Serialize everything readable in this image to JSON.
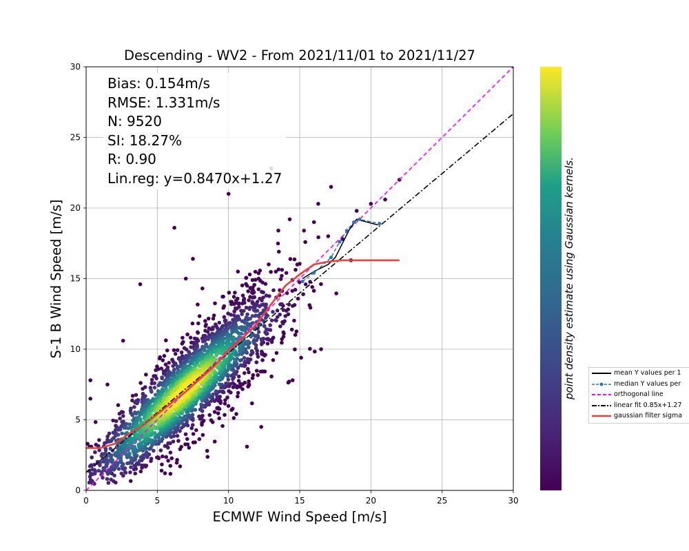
{
  "chart_data": {
    "type": "scatter",
    "title": "Descending - WV2 - From 2021/11/01 to 2021/11/27",
    "xlabel": "ECMWF Wind Speed [m/s]",
    "ylabel": "S-1 B Wind Speed [m/s]",
    "xlim": [
      0,
      30
    ],
    "ylim": [
      0,
      30
    ],
    "xticks": [
      "0",
      "5",
      "10",
      "15",
      "20",
      "25",
      "30"
    ],
    "yticks": [
      "0",
      "5",
      "10",
      "15",
      "20",
      "25",
      "30"
    ],
    "grid": true,
    "legend_position": "outside right",
    "colormap": "viridis",
    "colorbar_label": "point density estimate using Gaussian kernels.",
    "stats": [
      "Bias: 0.154m/s",
      "RMSE: 1.331m/s",
      "N: 9520",
      "SI: 18.27%",
      "R: 0.90",
      "Lin.reg: y=0.8470x+1.27"
    ],
    "series": [
      {
        "name": "mean Y values per 1",
        "color": "#000000",
        "style": "solid",
        "x": [
          15.2,
          16.0,
          17.0,
          17.5,
          18.0,
          18.5,
          19.0,
          20.5
        ],
        "y": [
          15.0,
          15.5,
          16.0,
          16.5,
          17.5,
          18.5,
          19.2,
          18.8
        ]
      },
      {
        "name": "median Y values per",
        "color": "#1f77b4",
        "style": "dashed-markers",
        "x": [
          15.2,
          16.0,
          17.2,
          17.8,
          18.3,
          18.8,
          19.2,
          20.6
        ],
        "y": [
          14.8,
          15.4,
          16.5,
          17.6,
          18.4,
          19.0,
          19.2,
          18.9
        ]
      },
      {
        "name": "orthogonal line",
        "color": "#ff00ff",
        "style": "dashed",
        "x": [
          0,
          30
        ],
        "y": [
          0,
          30
        ]
      },
      {
        "name": "linear fit 0.85x+1.27",
        "color": "#000000",
        "style": "dashdot",
        "x": [
          0,
          30
        ],
        "y": [
          1.27,
          26.68
        ]
      },
      {
        "name": "gaussian filter sigma",
        "color": "#e8403a",
        "style": "solid",
        "x": [
          0,
          1,
          2,
          3,
          4,
          5,
          6,
          7,
          8,
          9,
          10,
          11,
          12,
          13,
          14,
          15,
          16,
          17,
          18,
          19,
          20,
          21,
          22
        ],
        "y": [
          3.0,
          3.0,
          3.3,
          4.0,
          4.6,
          5.4,
          6.2,
          7.0,
          7.9,
          8.8,
          9.9,
          10.8,
          11.8,
          13.2,
          14.5,
          15.3,
          16.0,
          16.2,
          16.3,
          16.3,
          16.3,
          16.3,
          16.3
        ]
      }
    ],
    "scatter_outliers": [
      [
        10.0,
        21.0
      ],
      [
        13.0,
        22.8
      ],
      [
        6.2,
        18.6
      ],
      [
        7.0,
        15.0
      ],
      [
        3.8,
        14.6
      ],
      [
        7.5,
        16.4
      ],
      [
        0.3,
        7.8
      ],
      [
        0.3,
        6.5
      ],
      [
        1.5,
        7.5
      ],
      [
        12.3,
        4.5
      ],
      [
        11.3,
        3.1
      ],
      [
        14.5,
        7.8
      ],
      [
        22.0,
        22.0
      ],
      [
        21.0,
        20.6
      ],
      [
        20.0,
        20.3
      ],
      [
        17.2,
        21.5
      ],
      [
        19.0,
        19.8
      ],
      [
        16.3,
        20.3
      ],
      [
        14.3,
        19.2
      ],
      [
        17.0,
        18.0
      ],
      [
        18.6,
        16.3
      ],
      [
        18.0,
        17.8
      ],
      [
        16.0,
        19.0
      ],
      [
        15.3,
        18.4
      ],
      [
        8.5,
        2.8
      ],
      [
        6.6,
        1.7
      ],
      [
        5.3,
        1.4
      ],
      [
        2.6,
        10.6
      ],
      [
        1.8,
        1.2
      ],
      [
        0.1,
        3.3
      ],
      [
        4.2,
        8.2
      ],
      [
        15.1,
        9.4
      ],
      [
        13.5,
        18.4
      ],
      [
        16.5,
        10.0
      ]
    ]
  },
  "legend": {
    "items": [
      "mean Y values per 1",
      "median Y values per",
      "orthogonal line",
      "linear fit 0.85x+1.27",
      "gaussian filter sigma"
    ]
  }
}
